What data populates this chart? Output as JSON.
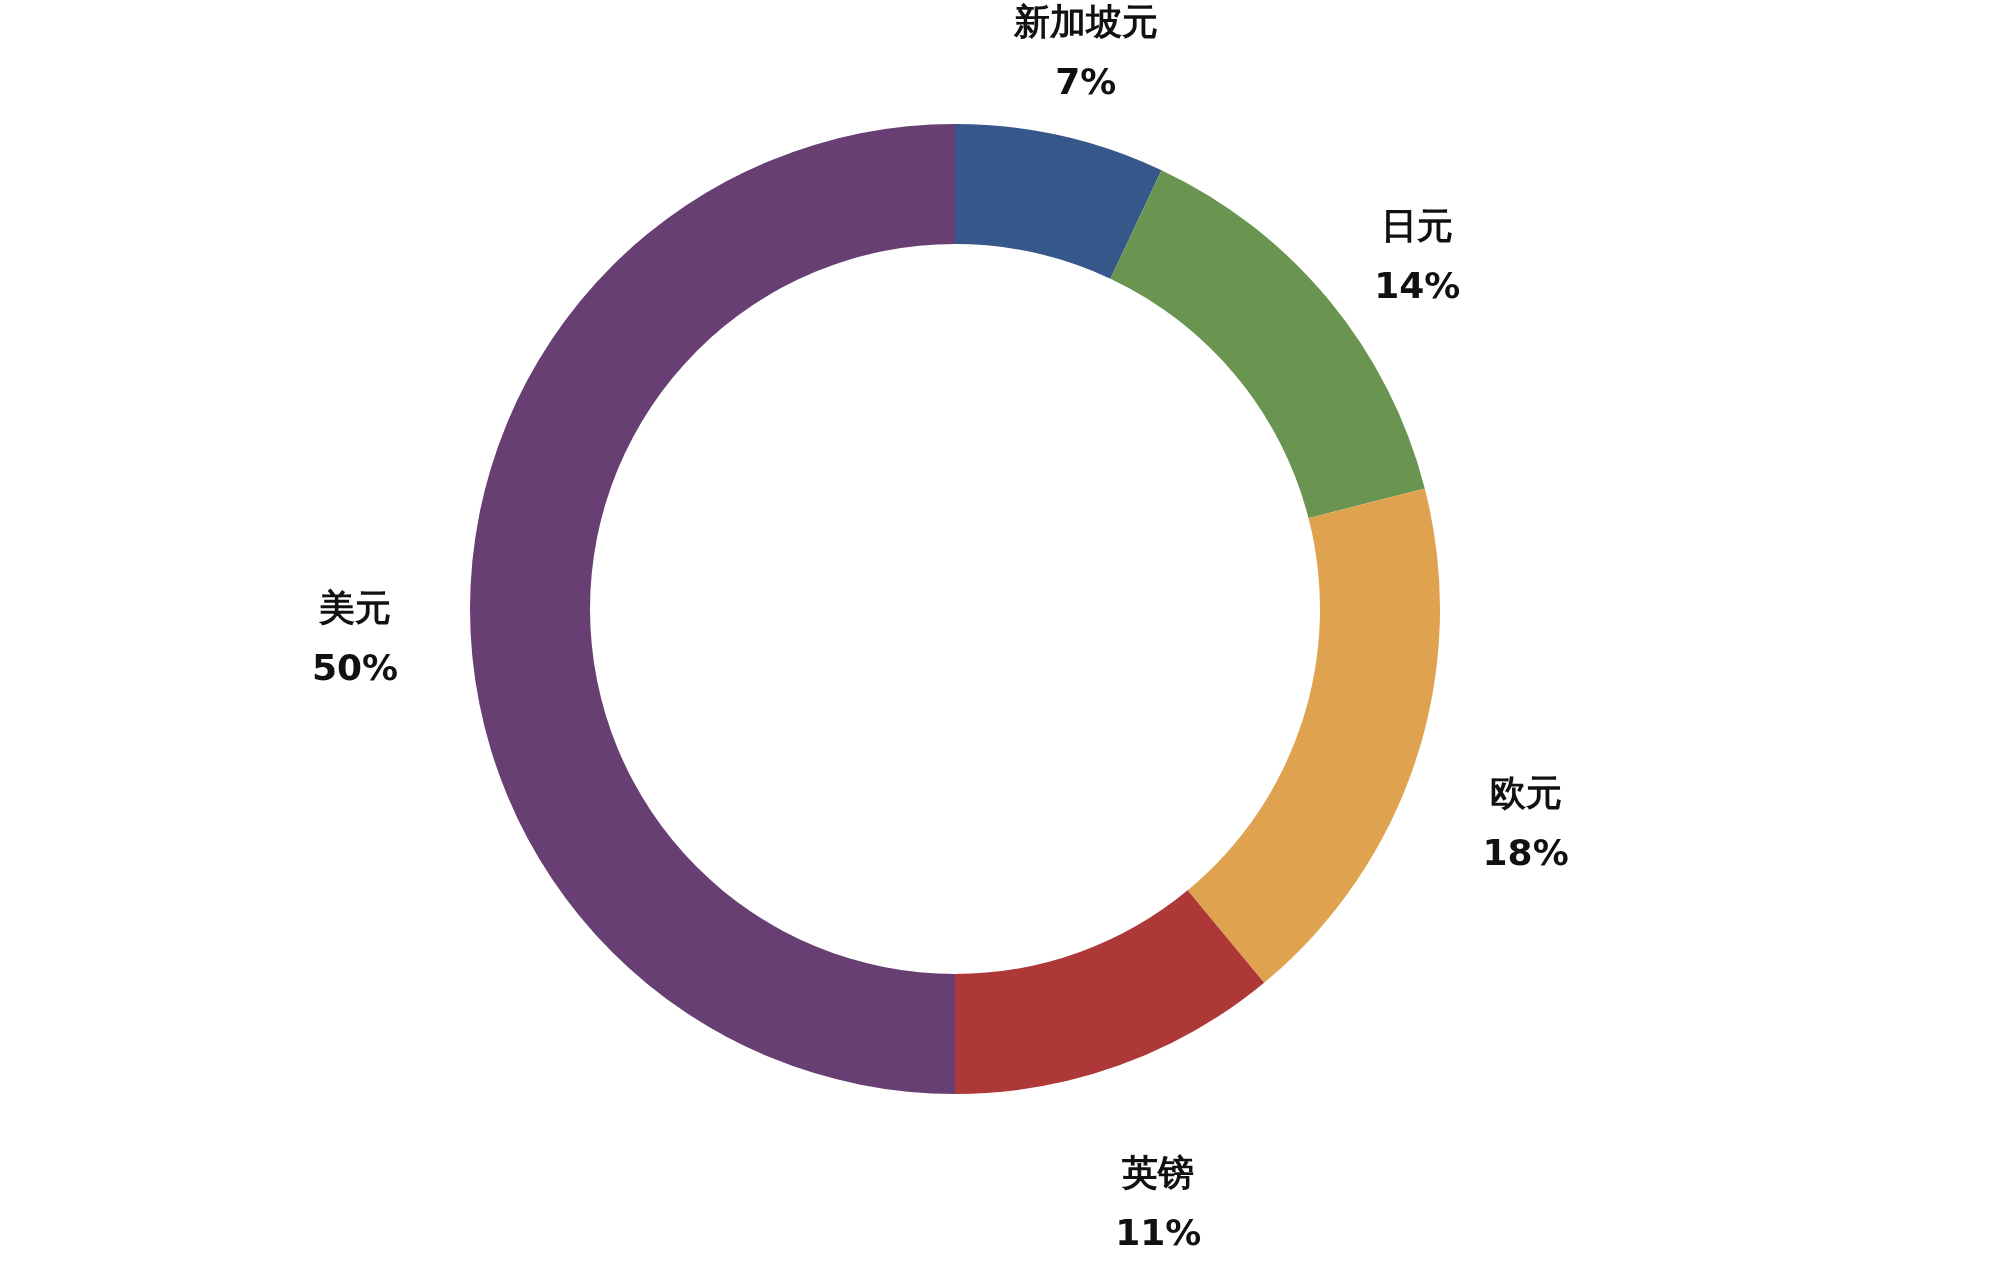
{
  "chart_data": {
    "type": "donut",
    "categories": [
      "新加坡元",
      "日元",
      "欧元",
      "英镑",
      "美元"
    ],
    "values": [
      7,
      14,
      18,
      11,
      50
    ],
    "value_labels": [
      "7%",
      "14%",
      "18%",
      "11%",
      "50%"
    ],
    "colors": [
      "#36578a",
      "#6a9550",
      "#dfa350",
      "#ae3737",
      "#683f73"
    ],
    "legend": false
  }
}
